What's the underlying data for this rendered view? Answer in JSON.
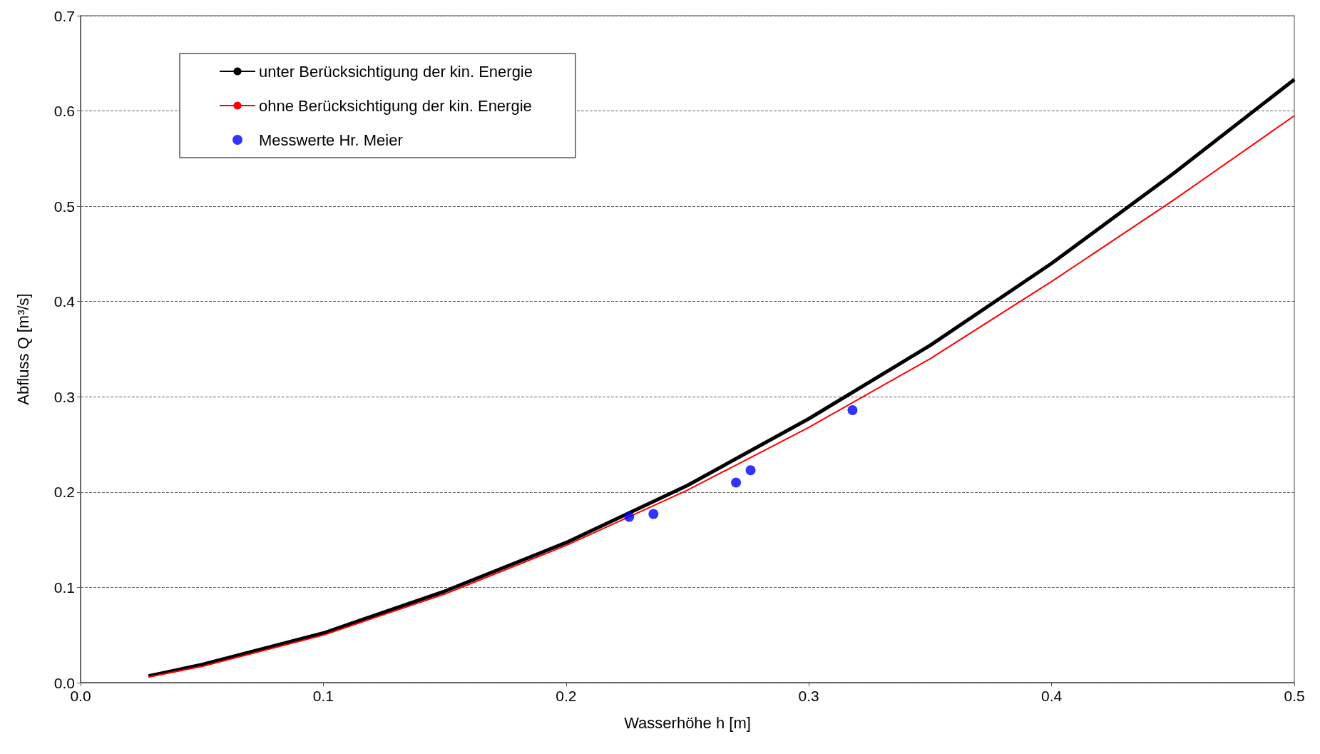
{
  "chart_data": {
    "type": "line",
    "xlabel": "Wasserhöhe h [m]",
    "ylabel": "Abfluss Q [m³/s]",
    "xlim": [
      0,
      0.5
    ],
    "xticks": [
      {
        "value": 0,
        "label": "0.0"
      },
      0.1,
      0.2,
      0.3,
      0.4,
      0.5
    ],
    "ylim": [
      0,
      0.7
    ],
    "yticks": [
      {
        "value": 0,
        "label": "0.0"
      },
      0.1,
      0.2,
      0.3,
      0.4,
      0.5,
      0.6,
      0.7
    ],
    "grid": "y",
    "legend": "top left",
    "series": [
      {
        "name": "unter Berücksichtigung der kin. Energie",
        "color": "#000000",
        "marker": "none",
        "x": [
          0.028,
          0.05,
          0.1,
          0.15,
          0.2,
          0.25,
          0.3,
          0.35,
          0.4,
          0.45,
          0.5
        ],
        "values": [
          0.007,
          0.019,
          0.052,
          0.096,
          0.147,
          0.207,
          0.277,
          0.354,
          0.44,
          0.534,
          0.633
        ]
      },
      {
        "name": "ohne Berücksichtigung der kin. Energie",
        "color": "#ff0000",
        "marker": "none",
        "x": [
          0.028,
          0.05,
          0.1,
          0.15,
          0.2,
          0.25,
          0.3,
          0.35,
          0.4,
          0.45,
          0.5
        ],
        "values": [
          0.006,
          0.017,
          0.05,
          0.093,
          0.144,
          0.202,
          0.268,
          0.34,
          0.421,
          0.506,
          0.595
        ]
      },
      {
        "name": "Messwerte Hr. Meier",
        "type": "scatter",
        "color": "#0000ff",
        "marker": "circle",
        "x": [
          0.226,
          0.236,
          0.27,
          0.276,
          0.318
        ],
        "values": [
          0.174,
          0.177,
          0.21,
          0.223,
          0.286
        ]
      }
    ]
  }
}
